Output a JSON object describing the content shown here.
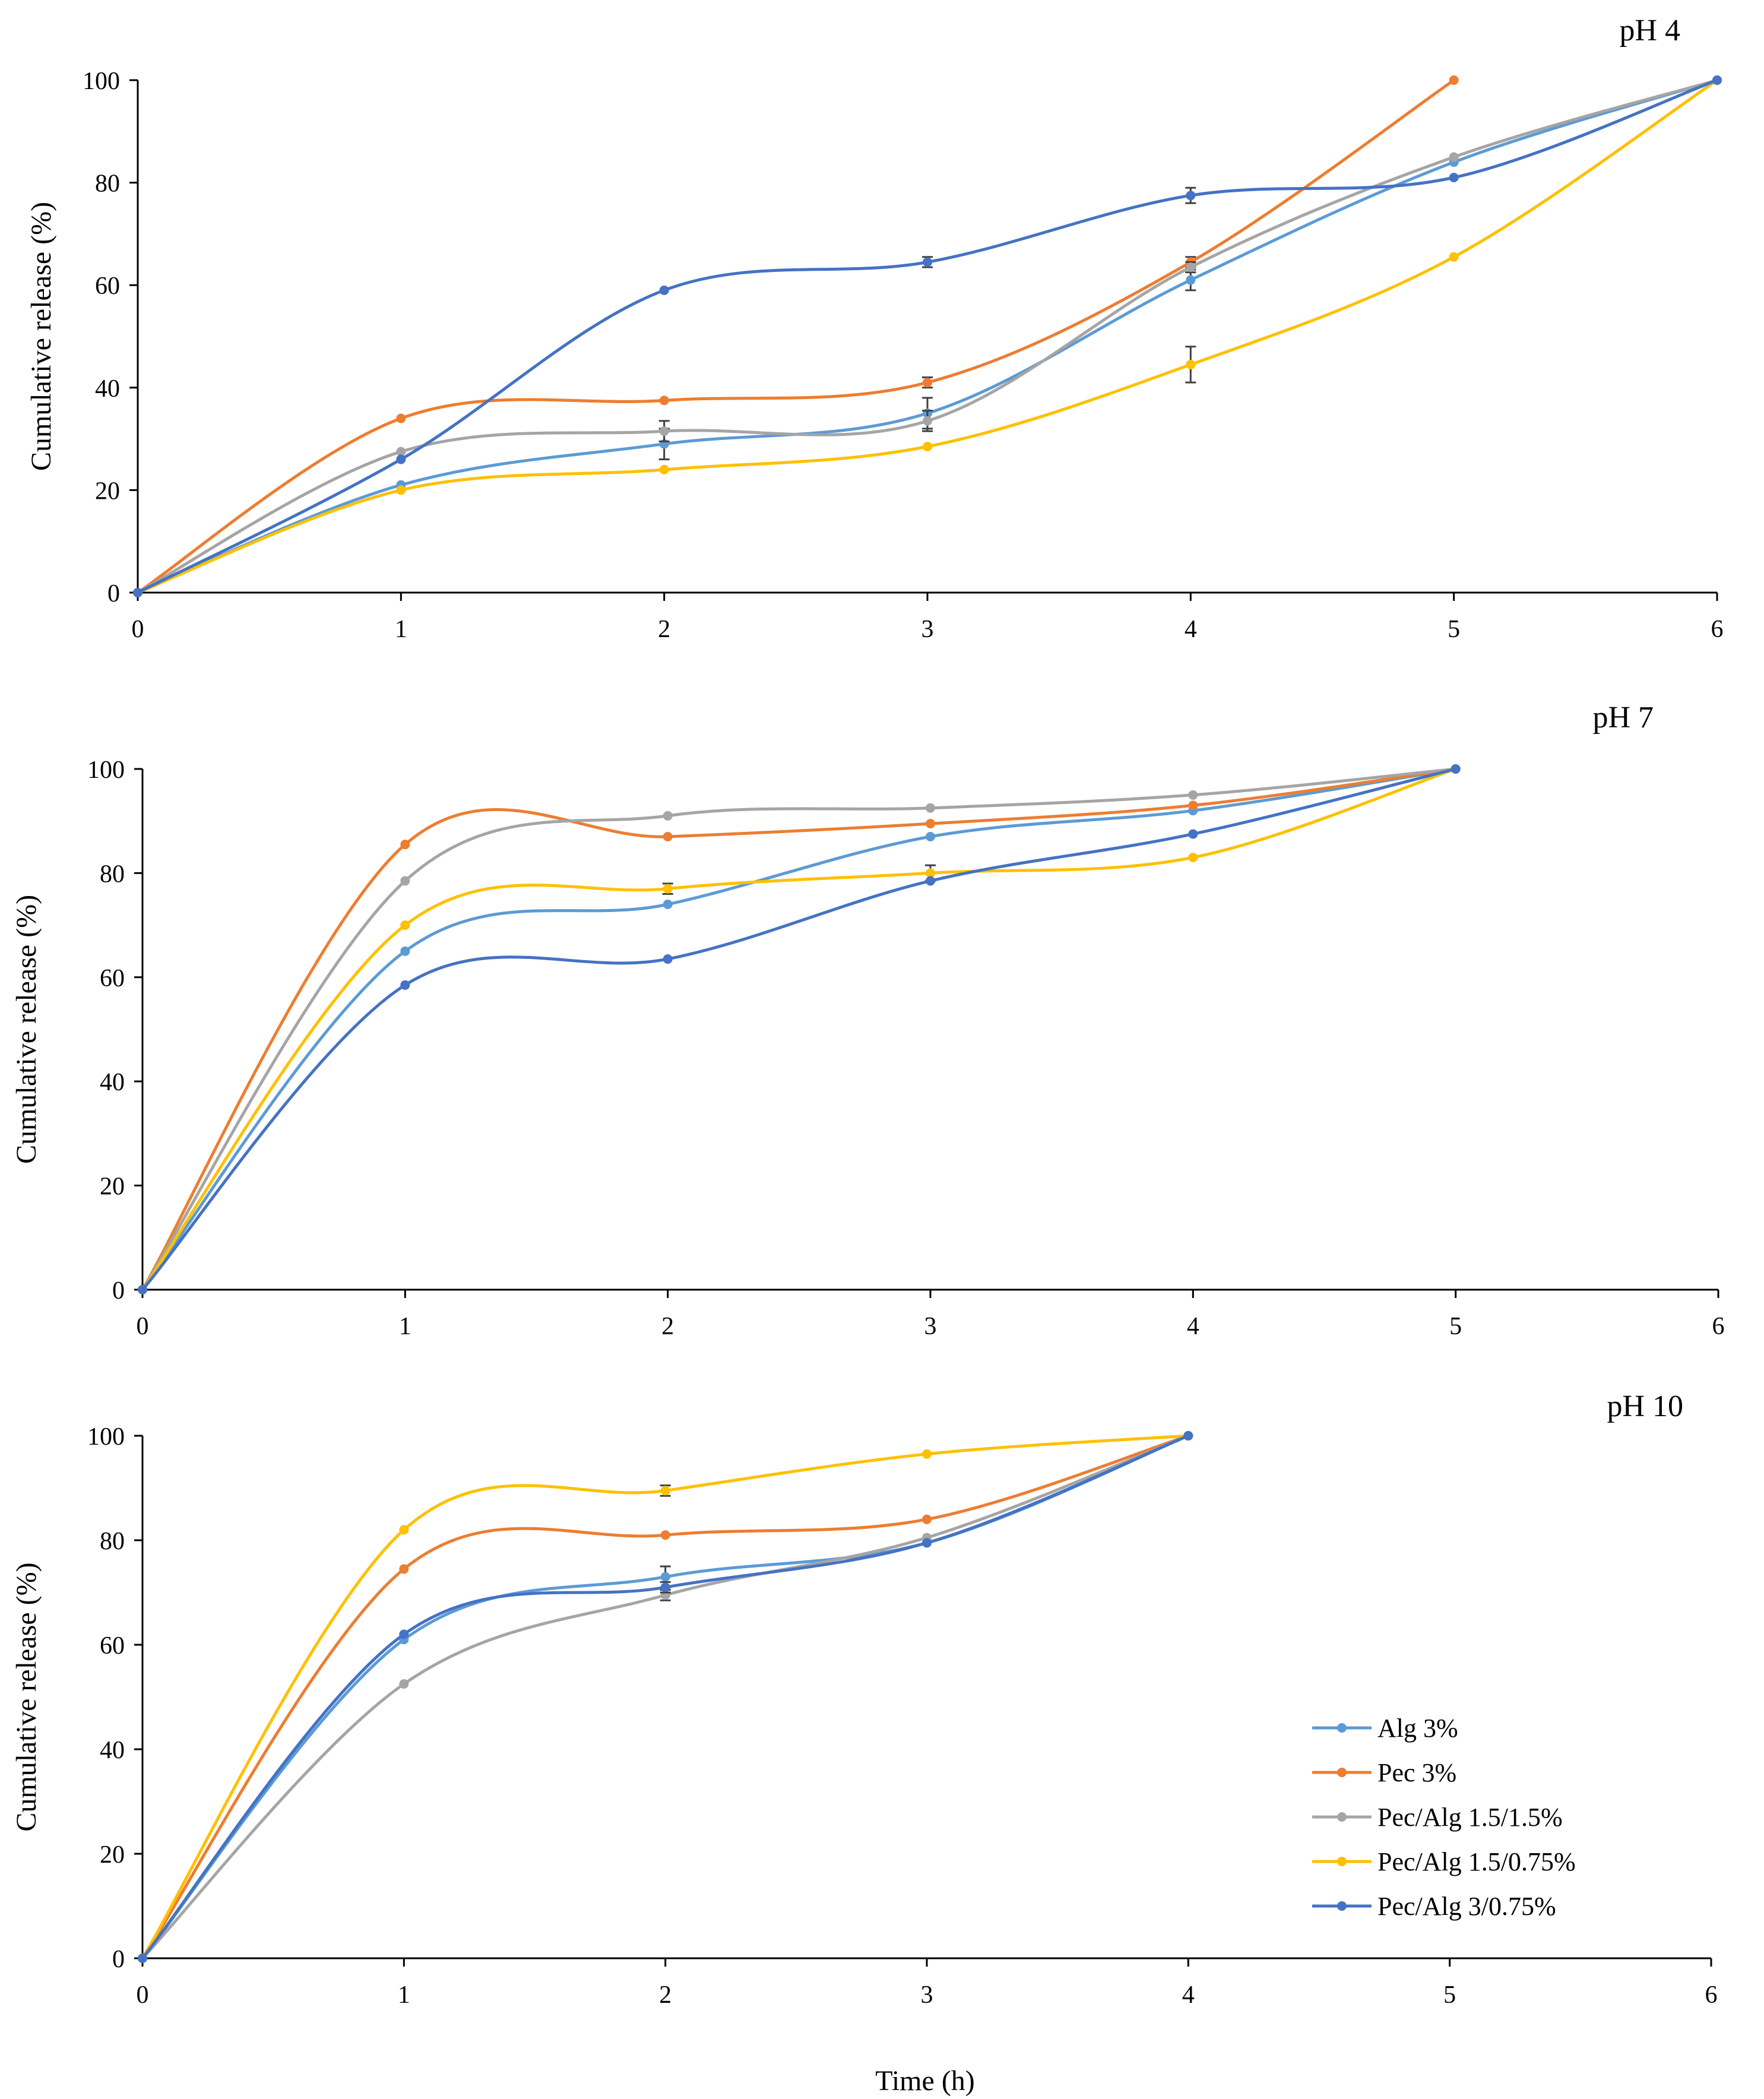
{
  "figure": {
    "xlabel": "Time (h)",
    "legend_position": "bottom-right of third panel"
  },
  "chart_data": [
    {
      "type": "line",
      "title": "pH 4",
      "xlabel": "",
      "ylabel": "Cumulative release (%)",
      "xlim": [
        0,
        6
      ],
      "ylim": [
        0,
        100
      ],
      "xticks": [
        "0",
        "1",
        "2",
        "3",
        "4",
        "5",
        "6"
      ],
      "yticks": [
        "0",
        "20",
        "40",
        "60",
        "80",
        "100"
      ],
      "series": [
        {
          "name": "Alg 3%",
          "color": "#5b9bd5",
          "x": [
            0,
            1,
            2,
            3,
            4,
            5,
            6
          ],
          "y": [
            0,
            21,
            29,
            35,
            61,
            84,
            100
          ],
          "err": [
            0,
            0.5,
            3,
            3,
            2,
            0.5,
            0
          ]
        },
        {
          "name": "Pec 3%",
          "color": "#ed7d31",
          "x": [
            0,
            1,
            2,
            3,
            4,
            5
          ],
          "y": [
            0,
            34,
            37.5,
            41,
            64.5,
            100
          ],
          "err": [
            0,
            0.5,
            0.5,
            1,
            1,
            0
          ]
        },
        {
          "name": "Pec/Alg 1.5/1.5%",
          "color": "#a5a5a5",
          "x": [
            0,
            1,
            2,
            3,
            4,
            5,
            6
          ],
          "y": [
            0,
            27.5,
            31.5,
            33.5,
            63.5,
            85,
            100
          ],
          "err": [
            0,
            0.5,
            2,
            2,
            1,
            0.5,
            0
          ]
        },
        {
          "name": "Pec/Alg 1.5/0.75%",
          "color": "#ffc000",
          "x": [
            0,
            1,
            2,
            3,
            4,
            5,
            6
          ],
          "y": [
            0,
            20,
            24,
            28.5,
            44.5,
            65.5,
            100
          ],
          "err": [
            0,
            0.5,
            0.5,
            0.5,
            3.5,
            0.5,
            0
          ]
        },
        {
          "name": "Pec/Alg 3/0.75%",
          "color": "#4472c4",
          "x": [
            0,
            1,
            2,
            3,
            4,
            5,
            6
          ],
          "y": [
            0,
            26,
            59,
            64.5,
            77.5,
            81,
            100
          ],
          "err": [
            0,
            0.5,
            0.5,
            1,
            1.5,
            0.5,
            0
          ]
        }
      ]
    },
    {
      "type": "line",
      "title": "pH 7",
      "xlabel": "",
      "ylabel": "Cumulative release (%)",
      "xlim": [
        0,
        6
      ],
      "ylim": [
        0,
        100
      ],
      "xticks": [
        "0",
        "1",
        "2",
        "3",
        "4",
        "5",
        "6"
      ],
      "yticks": [
        "0",
        "20",
        "40",
        "60",
        "80",
        "100"
      ],
      "series": [
        {
          "name": "Alg 3%",
          "color": "#5b9bd5",
          "x": [
            0,
            1,
            2,
            3,
            4,
            5
          ],
          "y": [
            0,
            65,
            74,
            87,
            92,
            100
          ],
          "err": [
            0,
            0.5,
            0.5,
            0.5,
            0.5,
            0
          ]
        },
        {
          "name": "Pec 3%",
          "color": "#ed7d31",
          "x": [
            0,
            1,
            2,
            3,
            4,
            5
          ],
          "y": [
            0,
            85.5,
            87,
            89.5,
            93,
            100
          ],
          "err": [
            0,
            0.5,
            0.5,
            0.5,
            0.5,
            0
          ]
        },
        {
          "name": "Pec/Alg 1.5/1.5%",
          "color": "#a5a5a5",
          "x": [
            0,
            1,
            2,
            3,
            4,
            5
          ],
          "y": [
            0,
            78.5,
            91,
            92.5,
            95,
            100
          ],
          "err": [
            0,
            0.5,
            0.5,
            0.5,
            0.5,
            0
          ]
        },
        {
          "name": "Pec/Alg 1.5/0.75%",
          "color": "#ffc000",
          "x": [
            0,
            1,
            2,
            3,
            4,
            5
          ],
          "y": [
            0,
            70,
            77,
            80,
            83,
            100
          ],
          "err": [
            0,
            0.5,
            1,
            1.5,
            0.5,
            0
          ]
        },
        {
          "name": "Pec/Alg 3/0.75%",
          "color": "#4472c4",
          "x": [
            0,
            1,
            2,
            3,
            4,
            5
          ],
          "y": [
            0,
            58.5,
            63.5,
            78.5,
            87.5,
            100
          ],
          "err": [
            0,
            0.5,
            0.5,
            0.5,
            0.5,
            0
          ]
        }
      ]
    },
    {
      "type": "line",
      "title": "pH 10",
      "xlabel": "Time (h)",
      "ylabel": "Cumulative release (%)",
      "xlim": [
        0,
        6
      ],
      "ylim": [
        0,
        100
      ],
      "xticks": [
        "0",
        "1",
        "2",
        "3",
        "4",
        "5",
        "6"
      ],
      "yticks": [
        "0",
        "20",
        "40",
        "60",
        "80",
        "100"
      ],
      "series": [
        {
          "name": "Alg 3%",
          "color": "#5b9bd5",
          "x": [
            0,
            1,
            2,
            3,
            4
          ],
          "y": [
            0,
            61,
            73,
            79.5,
            100
          ],
          "err": [
            0,
            0.5,
            2,
            0.5,
            0
          ]
        },
        {
          "name": "Pec 3%",
          "color": "#ed7d31",
          "x": [
            0,
            1,
            2,
            3,
            4
          ],
          "y": [
            0,
            74.5,
            81,
            84,
            100
          ],
          "err": [
            0,
            0.5,
            0.5,
            0.5,
            0
          ]
        },
        {
          "name": "Pec/Alg 1.5/1.5%",
          "color": "#a5a5a5",
          "x": [
            0,
            1,
            2,
            3,
            4
          ],
          "y": [
            0,
            52.5,
            69.5,
            80.5,
            100
          ],
          "err": [
            0,
            0.5,
            1,
            0.5,
            0
          ]
        },
        {
          "name": "Pec/Alg 1.5/0.75%",
          "color": "#ffc000",
          "x": [
            0,
            1,
            2,
            3,
            4
          ],
          "y": [
            0,
            82,
            89.5,
            96.5,
            100
          ],
          "err": [
            0,
            0.5,
            1,
            0.5,
            0
          ]
        },
        {
          "name": "Pec/Alg 3/0.75%",
          "color": "#4472c4",
          "x": [
            0,
            1,
            2,
            3,
            4
          ],
          "y": [
            0,
            62,
            71,
            79.5,
            100
          ],
          "err": [
            0,
            0.5,
            1,
            0.5,
            0
          ]
        }
      ]
    }
  ],
  "legend": {
    "entries": [
      {
        "name": "Alg 3%",
        "color": "#5b9bd5"
      },
      {
        "name": "Pec 3%",
        "color": "#ed7d31"
      },
      {
        "name": "Pec/Alg 1.5/1.5%",
        "color": "#a5a5a5"
      },
      {
        "name": "Pec/Alg 1.5/0.75%",
        "color": "#ffc000"
      },
      {
        "name": "Pec/Alg 3/0.75%",
        "color": "#4472c4"
      }
    ]
  }
}
